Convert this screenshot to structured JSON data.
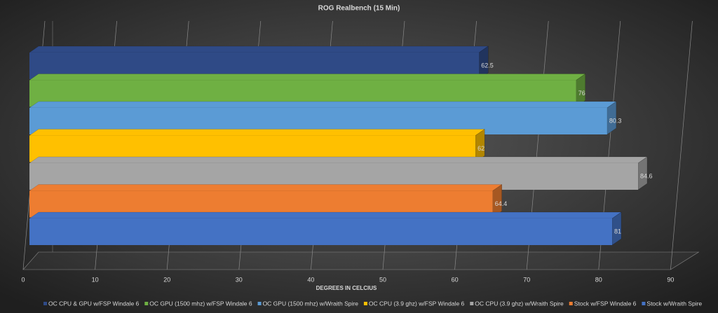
{
  "chart_data": {
    "type": "bar",
    "orientation": "horizontal",
    "title": "ROG Realbench  (15 Min)",
    "x_label": "DEGREES IN CELCIUS",
    "categories": [
      null
    ],
    "xlim": [
      0,
      90
    ],
    "xticks": [
      0,
      10,
      20,
      30,
      40,
      50,
      60,
      70,
      80,
      90
    ],
    "grid": true,
    "legend": "bottom",
    "series": [
      {
        "name": "OC CPU & GPU w/FSP Windale 6",
        "color": "#2f4a86",
        "values": [
          62.5
        ]
      },
      {
        "name": "OC GPU (1500 mhz) w/FSP Windale 6",
        "color": "#6fb043",
        "values": [
          76
        ]
      },
      {
        "name": "OC GPU (1500 mhz) w/Wraith Spire",
        "color": "#5b9bd5",
        "values": [
          80.3
        ]
      },
      {
        "name": "OC CPU (3.9 ghz) w/FSP Windale 6",
        "color": "#ffc000",
        "values": [
          62
        ]
      },
      {
        "name": "OC CPU (3.9 ghz) w/Wraith Spire",
        "color": "#a5a5a5",
        "values": [
          84.6
        ]
      },
      {
        "name": "Stock w/FSP Windale 6",
        "color": "#ed7d31",
        "values": [
          64.4
        ]
      },
      {
        "name": "Stock w/Wraith Spire",
        "color": "#4472c4",
        "values": [
          81
        ]
      }
    ]
  }
}
